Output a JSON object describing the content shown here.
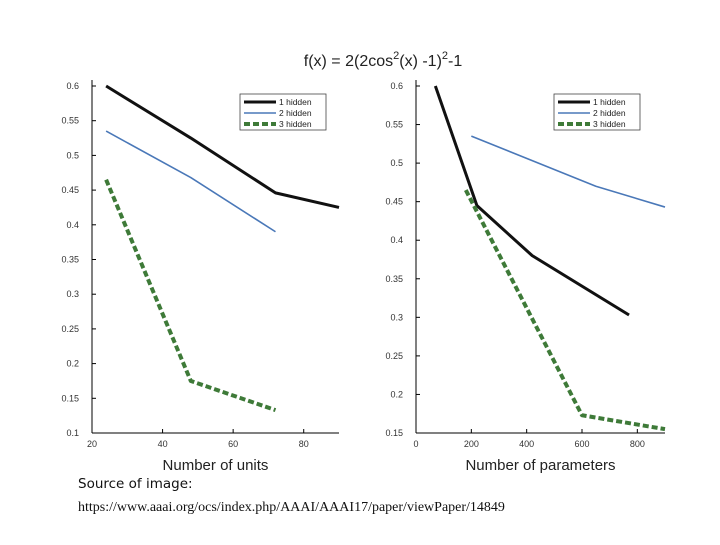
{
  "figure": {
    "title_main": "f(x) = 2(2cos",
    "title_sup1": "2",
    "title_mid": "(x) -1)",
    "title_sup2": "2",
    "title_end": "-1"
  },
  "caption": {
    "source_label": "Source of image:",
    "source_url": "https://www.aaai.org/ocs/index.php/AAAI/AAAI17/paper/viewPaper/14849"
  },
  "colors": {
    "black_series": "#111111",
    "blue_series": "#4a78b8",
    "green_series": "#3e7a38",
    "axis": "#000000"
  },
  "chart_data": [
    {
      "type": "line",
      "title": "",
      "xlabel": "Number of units",
      "ylabel": "",
      "xlim": [
        20,
        90
      ],
      "ylim": [
        0.1,
        0.6
      ],
      "xticks": [
        20,
        40,
        60,
        80
      ],
      "xtick_labels": [
        "20",
        "40",
        "60",
        "80"
      ],
      "yticks": [
        0.1,
        0.15,
        0.2,
        0.25,
        0.3,
        0.35,
        0.4,
        0.45,
        0.5,
        0.55,
        0.6
      ],
      "ytick_labels": [
        "0.1",
        "0.15",
        "0.2",
        "0.25",
        "0.3",
        "0.35",
        "0.4",
        "0.45",
        "0.5",
        "0.55",
        "0.6"
      ],
      "legend_position": "top-right",
      "series": [
        {
          "name": "1 hidden",
          "color": "#111111",
          "style": "solid-thick",
          "x": [
            24,
            48,
            72,
            90
          ],
          "y": [
            0.6,
            0.525,
            0.446,
            0.425
          ]
        },
        {
          "name": "2 hidden",
          "color": "#4a78b8",
          "style": "solid-thin",
          "x": [
            24,
            48,
            72
          ],
          "y": [
            0.535,
            0.468,
            0.39
          ]
        },
        {
          "name": "3 hidden",
          "color": "#3e7a38",
          "style": "dashed",
          "x": [
            24,
            48,
            72
          ],
          "y": [
            0.465,
            0.175,
            0.133
          ]
        }
      ]
    },
    {
      "type": "line",
      "title": "",
      "xlabel": "Number of parameters",
      "ylabel": "",
      "xlim": [
        0,
        900
      ],
      "ylim": [
        0.15,
        0.6
      ],
      "xticks": [
        0,
        200,
        400,
        600,
        800
      ],
      "xtick_labels": [
        "0",
        "200",
        "400",
        "600",
        "800"
      ],
      "yticks": [
        0.15,
        0.2,
        0.25,
        0.3,
        0.35,
        0.4,
        0.45,
        0.5,
        0.55,
        0.6
      ],
      "ytick_labels": [
        "0.15",
        "0.2",
        "0.25",
        "0.3",
        "0.35",
        "0.4",
        "0.45",
        "0.5",
        "0.55",
        "0.6"
      ],
      "legend_position": "top-right",
      "series": [
        {
          "name": "1 hidden",
          "color": "#111111",
          "style": "solid-thick",
          "x": [
            70,
            220,
            420,
            770
          ],
          "y": [
            0.6,
            0.445,
            0.38,
            0.303
          ]
        },
        {
          "name": "2 hidden",
          "color": "#4a78b8",
          "style": "solid-thin",
          "x": [
            200,
            650,
            900
          ],
          "y": [
            0.535,
            0.47,
            0.443
          ]
        },
        {
          "name": "3 hidden",
          "color": "#3e7a38",
          "style": "dashed",
          "x": [
            180,
            600,
            900
          ],
          "y": [
            0.465,
            0.173,
            0.155
          ]
        }
      ]
    }
  ]
}
